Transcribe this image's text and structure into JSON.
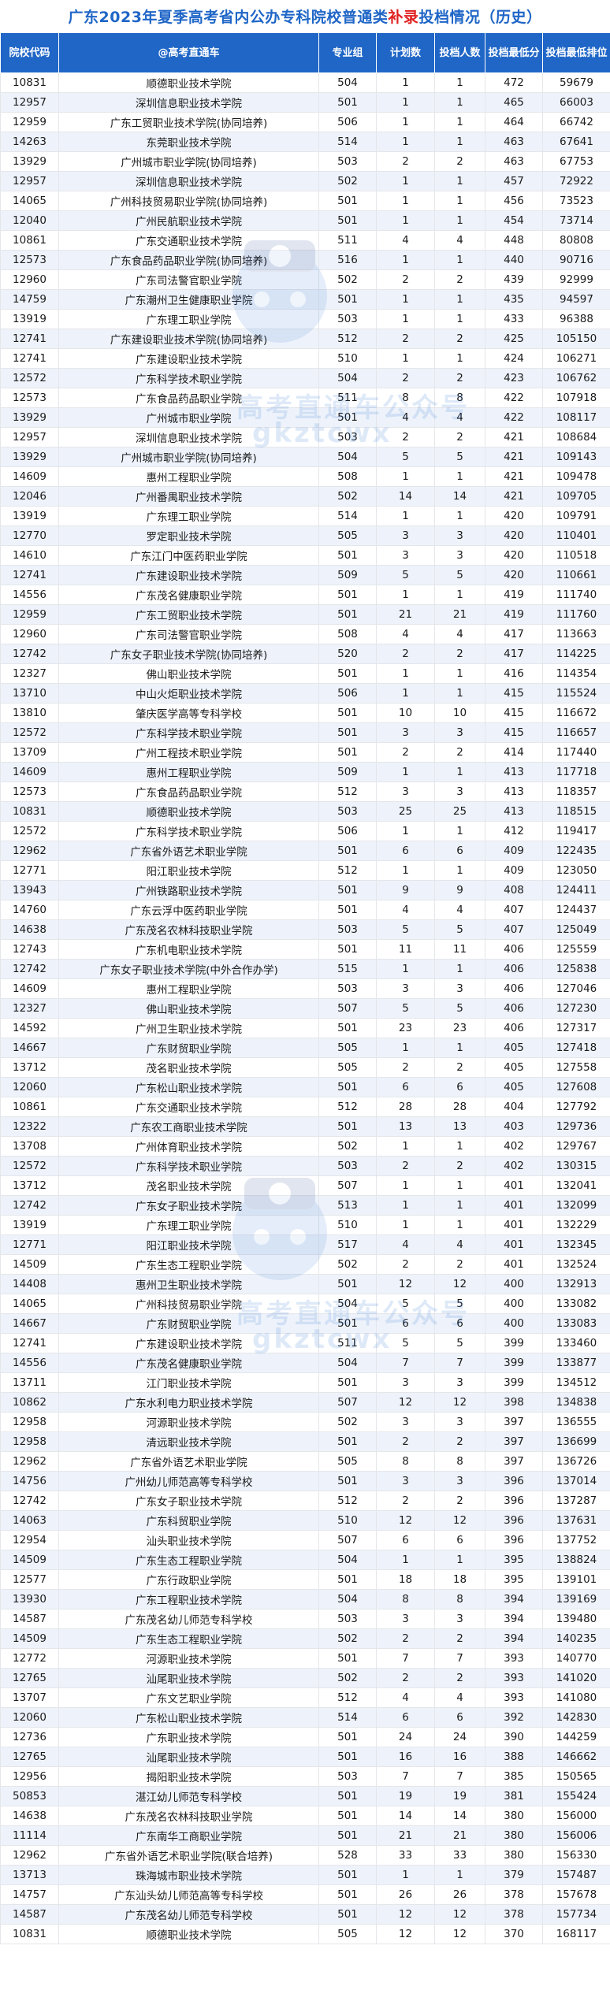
{
  "title": {
    "prefix": "广东2023年夏季高考省内公办专科院校普通类",
    "highlight": "补录",
    "suffix": "投档情况（历史）",
    "accent_color": "#1f66c7",
    "highlight_color": "#e02020"
  },
  "headers": {
    "code": "院校代码",
    "name": "@高考直通车",
    "group": "专业组",
    "plan": "计划数",
    "admit": "投档人数",
    "min_score": "投档最低分",
    "min_rank": "投档最低排位"
  },
  "watermark": {
    "line1": "高考直通车公众号",
    "line2": "gkztcwx"
  },
  "rows": [
    [
      "10831",
      "顺德职业技术学院",
      "504",
      "1",
      "1",
      "472",
      "59679"
    ],
    [
      "12957",
      "深圳信息职业技术学院",
      "501",
      "1",
      "1",
      "465",
      "66003"
    ],
    [
      "12959",
      "广东工贸职业技术学院(协同培养)",
      "506",
      "1",
      "1",
      "464",
      "66742"
    ],
    [
      "14263",
      "东莞职业技术学院",
      "514",
      "1",
      "1",
      "463",
      "67641"
    ],
    [
      "13929",
      "广州城市职业学院(协同培养)",
      "503",
      "2",
      "2",
      "463",
      "67753"
    ],
    [
      "12957",
      "深圳信息职业技术学院",
      "502",
      "1",
      "1",
      "457",
      "72922"
    ],
    [
      "14065",
      "广州科技贸易职业学院(协同培养)",
      "501",
      "1",
      "1",
      "456",
      "73523"
    ],
    [
      "12040",
      "广州民航职业技术学院",
      "501",
      "1",
      "1",
      "454",
      "73714"
    ],
    [
      "10861",
      "广东交通职业技术学院",
      "511",
      "4",
      "4",
      "448",
      "80808"
    ],
    [
      "12573",
      "广东食品药品职业学院(协同培养)",
      "516",
      "1",
      "1",
      "440",
      "90716"
    ],
    [
      "12960",
      "广东司法警官职业学院",
      "502",
      "2",
      "2",
      "439",
      "92999"
    ],
    [
      "14759",
      "广东潮州卫生健康职业学院",
      "501",
      "1",
      "1",
      "435",
      "94597"
    ],
    [
      "13919",
      "广东理工职业学院",
      "503",
      "1",
      "1",
      "433",
      "96388"
    ],
    [
      "12741",
      "广东建设职业技术学院(协同培养)",
      "512",
      "2",
      "2",
      "425",
      "105150"
    ],
    [
      "12741",
      "广东建设职业技术学院",
      "510",
      "1",
      "1",
      "424",
      "106271"
    ],
    [
      "12572",
      "广东科学技术职业学院",
      "504",
      "2",
      "2",
      "423",
      "106762"
    ],
    [
      "12573",
      "广东食品药品职业学院",
      "511",
      "8",
      "8",
      "422",
      "107918"
    ],
    [
      "13929",
      "广州城市职业学院",
      "501",
      "4",
      "4",
      "422",
      "108117"
    ],
    [
      "12957",
      "深圳信息职业技术学院",
      "503",
      "2",
      "2",
      "421",
      "108684"
    ],
    [
      "13929",
      "广州城市职业学院(协同培养)",
      "504",
      "5",
      "5",
      "421",
      "109143"
    ],
    [
      "14609",
      "惠州工程职业学院",
      "508",
      "1",
      "1",
      "421",
      "109478"
    ],
    [
      "12046",
      "广州番禺职业技术学院",
      "502",
      "14",
      "14",
      "421",
      "109705"
    ],
    [
      "13919",
      "广东理工职业学院",
      "514",
      "1",
      "1",
      "420",
      "109791"
    ],
    [
      "12770",
      "罗定职业技术学院",
      "505",
      "3",
      "3",
      "420",
      "110401"
    ],
    [
      "14610",
      "广东江门中医药职业学院",
      "501",
      "3",
      "3",
      "420",
      "110518"
    ],
    [
      "12741",
      "广东建设职业技术学院",
      "509",
      "5",
      "5",
      "420",
      "110661"
    ],
    [
      "14556",
      "广东茂名健康职业学院",
      "501",
      "1",
      "1",
      "419",
      "111740"
    ],
    [
      "12959",
      "广东工贸职业技术学院",
      "501",
      "21",
      "21",
      "419",
      "111760"
    ],
    [
      "12960",
      "广东司法警官职业学院",
      "508",
      "4",
      "4",
      "417",
      "113663"
    ],
    [
      "12742",
      "广东女子职业技术学院(协同培养)",
      "520",
      "2",
      "2",
      "417",
      "114225"
    ],
    [
      "12327",
      "佛山职业技术学院",
      "501",
      "1",
      "1",
      "416",
      "114354"
    ],
    [
      "13710",
      "中山火炬职业技术学院",
      "506",
      "1",
      "1",
      "415",
      "115524"
    ],
    [
      "13810",
      "肇庆医学高等专科学校",
      "501",
      "10",
      "10",
      "415",
      "116672"
    ],
    [
      "12572",
      "广东科学技术职业学院",
      "501",
      "3",
      "3",
      "415",
      "116657"
    ],
    [
      "13709",
      "广州工程技术职业学院",
      "501",
      "2",
      "2",
      "414",
      "117440"
    ],
    [
      "14609",
      "惠州工程职业学院",
      "509",
      "1",
      "1",
      "413",
      "117718"
    ],
    [
      "12573",
      "广东食品药品职业学院",
      "512",
      "3",
      "3",
      "413",
      "118357"
    ],
    [
      "10831",
      "顺德职业技术学院",
      "503",
      "25",
      "25",
      "413",
      "118515"
    ],
    [
      "12572",
      "广东科学技术职业学院",
      "506",
      "1",
      "1",
      "412",
      "119417"
    ],
    [
      "12962",
      "广东省外语艺术职业学院",
      "501",
      "6",
      "6",
      "409",
      "122435"
    ],
    [
      "12771",
      "阳江职业技术学院",
      "512",
      "1",
      "1",
      "409",
      "123050"
    ],
    [
      "13943",
      "广州铁路职业技术学院",
      "501",
      "9",
      "9",
      "408",
      "124411"
    ],
    [
      "14760",
      "广东云浮中医药职业学院",
      "501",
      "4",
      "4",
      "407",
      "124437"
    ],
    [
      "14638",
      "广东茂名农林科技职业学院",
      "503",
      "5",
      "5",
      "407",
      "125049"
    ],
    [
      "12743",
      "广东机电职业技术学院",
      "501",
      "11",
      "11",
      "406",
      "125559"
    ],
    [
      "12742",
      "广东女子职业技术学院(中外合作办学)",
      "515",
      "1",
      "1",
      "406",
      "125838"
    ],
    [
      "14609",
      "惠州工程职业学院",
      "503",
      "3",
      "3",
      "406",
      "127046"
    ],
    [
      "12327",
      "佛山职业技术学院",
      "507",
      "5",
      "5",
      "406",
      "127230"
    ],
    [
      "14592",
      "广州卫生职业技术学院",
      "501",
      "23",
      "23",
      "406",
      "127317"
    ],
    [
      "14667",
      "广东财贸职业学院",
      "505",
      "1",
      "1",
      "405",
      "127418"
    ],
    [
      "13712",
      "茂名职业技术学院",
      "505",
      "2",
      "2",
      "405",
      "127558"
    ],
    [
      "12060",
      "广东松山职业技术学院",
      "501",
      "6",
      "6",
      "405",
      "127608"
    ],
    [
      "10861",
      "广东交通职业技术学院",
      "512",
      "28",
      "28",
      "404",
      "127792"
    ],
    [
      "12322",
      "广东农工商职业技术学院",
      "501",
      "13",
      "13",
      "403",
      "129736"
    ],
    [
      "13708",
      "广州体育职业技术学院",
      "502",
      "1",
      "1",
      "402",
      "129767"
    ],
    [
      "12572",
      "广东科学技术职业学院",
      "503",
      "2",
      "2",
      "402",
      "130315"
    ],
    [
      "13712",
      "茂名职业技术学院",
      "507",
      "1",
      "1",
      "401",
      "132041"
    ],
    [
      "12742",
      "广东女子职业技术学院",
      "513",
      "1",
      "1",
      "401",
      "132099"
    ],
    [
      "13919",
      "广东理工职业学院",
      "510",
      "1",
      "1",
      "401",
      "132229"
    ],
    [
      "12771",
      "阳江职业技术学院",
      "517",
      "4",
      "4",
      "401",
      "132345"
    ],
    [
      "14509",
      "广东生态工程职业学院",
      "502",
      "2",
      "2",
      "401",
      "132524"
    ],
    [
      "14408",
      "惠州卫生职业技术学院",
      "501",
      "12",
      "12",
      "400",
      "132913"
    ],
    [
      "14065",
      "广州科技贸易职业学院",
      "504",
      "5",
      "5",
      "400",
      "133082"
    ],
    [
      "14667",
      "广东财贸职业学院",
      "501",
      "6",
      "6",
      "400",
      "133083"
    ],
    [
      "12741",
      "广东建设职业技术学院",
      "511",
      "5",
      "5",
      "399",
      "133460"
    ],
    [
      "14556",
      "广东茂名健康职业学院",
      "504",
      "7",
      "7",
      "399",
      "133877"
    ],
    [
      "13711",
      "江门职业技术学院",
      "501",
      "3",
      "3",
      "399",
      "134512"
    ],
    [
      "10862",
      "广东水利电力职业技术学院",
      "507",
      "12",
      "12",
      "398",
      "134838"
    ],
    [
      "12958",
      "河源职业技术学院",
      "502",
      "3",
      "3",
      "397",
      "136555"
    ],
    [
      "12958",
      "清远职业技术学院",
      "501",
      "2",
      "2",
      "397",
      "136699"
    ],
    [
      "12962",
      "广东省外语艺术职业学院",
      "505",
      "8",
      "8",
      "397",
      "136726"
    ],
    [
      "14756",
      "广州幼儿师范高等专科学校",
      "501",
      "3",
      "3",
      "396",
      "137014"
    ],
    [
      "12742",
      "广东女子职业技术学院",
      "512",
      "2",
      "2",
      "396",
      "137287"
    ],
    [
      "14063",
      "广东科贸职业学院",
      "510",
      "12",
      "12",
      "396",
      "137631"
    ],
    [
      "12954",
      "汕头职业技术学院",
      "507",
      "6",
      "6",
      "396",
      "137752"
    ],
    [
      "14509",
      "广东生态工程职业学院",
      "504",
      "1",
      "1",
      "395",
      "138824"
    ],
    [
      "12577",
      "广东行政职业学院",
      "501",
      "18",
      "18",
      "395",
      "139101"
    ],
    [
      "13930",
      "广东工程职业技术学院",
      "504",
      "8",
      "8",
      "394",
      "139169"
    ],
    [
      "14587",
      "广东茂名幼儿师范专科学校",
      "503",
      "3",
      "3",
      "394",
      "139480"
    ],
    [
      "14509",
      "广东生态工程职业学院",
      "502",
      "2",
      "2",
      "394",
      "140235"
    ],
    [
      "12772",
      "河源职业技术学院",
      "501",
      "7",
      "7",
      "393",
      "140770"
    ],
    [
      "12765",
      "汕尾职业技术学院",
      "502",
      "2",
      "2",
      "393",
      "141020"
    ],
    [
      "13707",
      "广东文艺职业学院",
      "512",
      "4",
      "4",
      "393",
      "141080"
    ],
    [
      "12060",
      "广东松山职业技术学院",
      "514",
      "6",
      "6",
      "392",
      "142830"
    ],
    [
      "12736",
      "广东职业技术学院",
      "501",
      "24",
      "24",
      "390",
      "144259"
    ],
    [
      "12765",
      "汕尾职业技术学院",
      "501",
      "16",
      "16",
      "388",
      "146662"
    ],
    [
      "12956",
      "揭阳职业技术学院",
      "503",
      "7",
      "7",
      "385",
      "150565"
    ],
    [
      "50853",
      "湛江幼儿师范专科学校",
      "501",
      "19",
      "19",
      "381",
      "155424"
    ],
    [
      "14638",
      "广东茂名农林科技职业学院",
      "501",
      "14",
      "14",
      "380",
      "156000"
    ],
    [
      "11114",
      "广东南华工商职业学院",
      "501",
      "21",
      "21",
      "380",
      "156006"
    ],
    [
      "12962",
      "广东省外语艺术职业学院(联合培养)",
      "528",
      "33",
      "33",
      "380",
      "156330"
    ],
    [
      "13713",
      "珠海城市职业技术学院",
      "501",
      "1",
      "1",
      "379",
      "157487"
    ],
    [
      "14757",
      "广东汕头幼儿师范高等专科学校",
      "501",
      "26",
      "26",
      "378",
      "157678"
    ],
    [
      "14587",
      "广东茂名幼儿师范专科学校",
      "501",
      "12",
      "12",
      "378",
      "157734"
    ],
    [
      "10831",
      "顺德职业技术学院",
      "505",
      "12",
      "12",
      "370",
      "168117"
    ]
  ]
}
